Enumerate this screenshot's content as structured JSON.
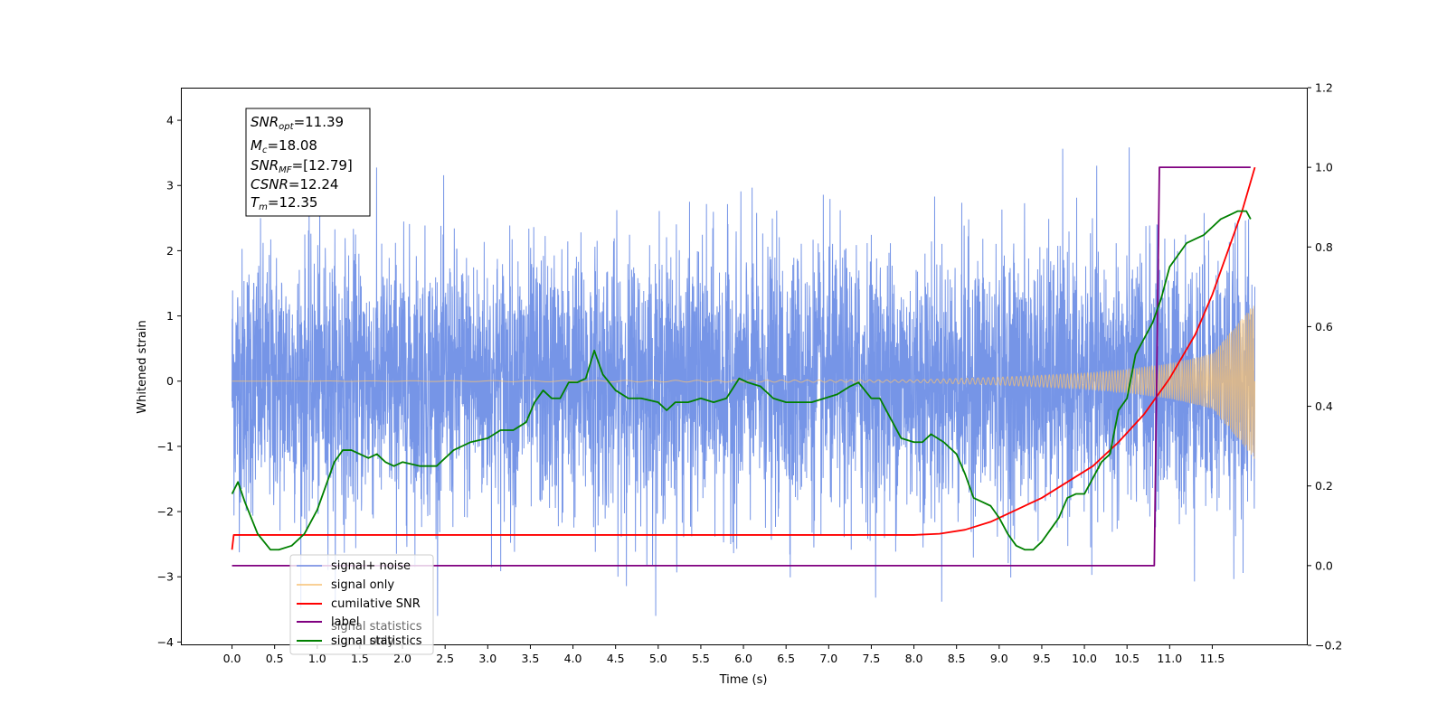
{
  "chart_data": {
    "type": "line",
    "xlabel": "Time (s)",
    "ylabel": "Whitened strain",
    "xlim": [
      -0.6,
      12.62
    ],
    "ylim": [
      -4.05,
      4.5
    ],
    "y2lim": [
      -0.2,
      1.2
    ],
    "x_ticks": [
      "0.0",
      "0.5",
      "1.0",
      "1.5",
      "2.0",
      "2.5",
      "3.0",
      "3.5",
      "4.0",
      "4.5",
      "5.0",
      "5.5",
      "6.0",
      "6.5",
      "7.0",
      "7.5",
      "8.0",
      "8.5",
      "9.0",
      "9.5",
      "10.0",
      "10.5",
      "11.0",
      "11.5"
    ],
    "y_ticks": [
      "4",
      "3",
      "2",
      "1",
      "0",
      "−1",
      "−2",
      "−3",
      "−4"
    ],
    "y2_ticks": [
      "1.2",
      "1.0",
      "0.8",
      "0.6",
      "0.4",
      "0.2",
      "0.0",
      "−0.2"
    ],
    "grid": false,
    "legend_position": "lower-left",
    "annotation": {
      "lines": [
        {
          "base": "SNR",
          "sub": "opt",
          "value": "=11.39"
        },
        {
          "base": "M",
          "sub": "c",
          "value": "=18.08"
        },
        {
          "base": "SNR",
          "sub": "MF",
          "value": "=[12.79]"
        },
        {
          "base": "CSNR",
          "sub": "",
          "value": "=12.24"
        },
        {
          "base": "T",
          "sub": "m",
          "value": "=12.35"
        }
      ]
    },
    "legend": [
      {
        "label": "signal+ noise",
        "color": "#6f8fe6"
      },
      {
        "label": "signal only",
        "color": "#f7c173"
      },
      {
        "label": "cumilative SNR",
        "color": "#ff0000"
      },
      {
        "label": "label",
        "color": "#800080"
      },
      {
        "label": "signal statistics",
        "color": "#008000"
      }
    ],
    "ghost_legend_text": [
      "signal only",
      "signal statistics"
    ],
    "series": [
      {
        "name": "signal+ noise",
        "axis": "left",
        "color": "#6f8fe6",
        "description_range": [
          -3.6,
          3.85
        ],
        "x_start": 0.0,
        "x_end": 12.0
      },
      {
        "name": "signal only",
        "axis": "left",
        "color": "#f7c173",
        "envelope": {
          "x": [
            0.0,
            8.0,
            9.0,
            10.0,
            10.5,
            11.0,
            11.5,
            12.0
          ],
          "amp": [
            0.0,
            0.02,
            0.06,
            0.12,
            0.18,
            0.27,
            0.42,
            1.2
          ]
        }
      },
      {
        "name": "cumilative SNR",
        "axis": "right",
        "color": "#ff0000",
        "x": [
          0.0,
          0.02,
          1.0,
          3.0,
          5.0,
          7.0,
          8.0,
          8.3,
          8.6,
          8.9,
          9.2,
          9.5,
          9.8,
          10.1,
          10.4,
          10.7,
          11.0,
          11.3,
          11.5,
          11.7,
          11.85,
          12.0
        ],
        "y": [
          0.04,
          0.077,
          0.077,
          0.077,
          0.077,
          0.077,
          0.077,
          0.08,
          0.09,
          0.11,
          0.14,
          0.17,
          0.21,
          0.25,
          0.31,
          0.38,
          0.47,
          0.58,
          0.68,
          0.8,
          0.89,
          1.0
        ]
      },
      {
        "name": "label",
        "axis": "right",
        "color": "#800080",
        "x": [
          0.0,
          10.82,
          10.88,
          11.95
        ],
        "y": [
          0.0,
          0.0,
          1.0,
          1.0
        ]
      },
      {
        "name": "signal statistics",
        "axis": "right",
        "color": "#008000",
        "x": [
          0.0,
          0.07,
          0.15,
          0.3,
          0.45,
          0.55,
          0.7,
          0.85,
          1.0,
          1.1,
          1.2,
          1.3,
          1.4,
          1.5,
          1.6,
          1.7,
          1.8,
          1.9,
          2.0,
          2.2,
          2.4,
          2.6,
          2.8,
          3.0,
          3.15,
          3.3,
          3.45,
          3.55,
          3.65,
          3.75,
          3.85,
          3.95,
          4.05,
          4.15,
          4.25,
          4.35,
          4.5,
          4.65,
          4.8,
          5.0,
          5.1,
          5.2,
          5.35,
          5.5,
          5.65,
          5.8,
          5.95,
          6.05,
          6.2,
          6.35,
          6.5,
          6.65,
          6.8,
          6.95,
          7.1,
          7.25,
          7.35,
          7.5,
          7.6,
          7.7,
          7.85,
          8.0,
          8.1,
          8.2,
          8.35,
          8.5,
          8.6,
          8.7,
          8.8,
          8.9,
          9.0,
          9.1,
          9.2,
          9.3,
          9.4,
          9.5,
          9.6,
          9.7,
          9.8,
          9.9,
          10.0,
          10.1,
          10.2,
          10.3,
          10.4,
          10.5,
          10.6,
          10.7,
          10.8,
          10.9,
          11.0,
          11.1,
          11.2,
          11.3,
          11.4,
          11.5,
          11.6,
          11.7,
          11.8,
          11.9,
          11.95
        ],
        "y": [
          0.18,
          0.21,
          0.16,
          0.08,
          0.04,
          0.04,
          0.05,
          0.08,
          0.14,
          0.2,
          0.26,
          0.29,
          0.29,
          0.28,
          0.27,
          0.28,
          0.26,
          0.25,
          0.26,
          0.25,
          0.25,
          0.29,
          0.31,
          0.32,
          0.34,
          0.34,
          0.36,
          0.41,
          0.44,
          0.42,
          0.42,
          0.46,
          0.46,
          0.47,
          0.54,
          0.48,
          0.44,
          0.42,
          0.42,
          0.41,
          0.39,
          0.41,
          0.41,
          0.42,
          0.41,
          0.42,
          0.47,
          0.46,
          0.45,
          0.42,
          0.41,
          0.41,
          0.41,
          0.42,
          0.43,
          0.45,
          0.46,
          0.42,
          0.42,
          0.38,
          0.32,
          0.31,
          0.31,
          0.33,
          0.31,
          0.28,
          0.23,
          0.17,
          0.16,
          0.15,
          0.12,
          0.08,
          0.05,
          0.04,
          0.04,
          0.06,
          0.09,
          0.12,
          0.17,
          0.18,
          0.18,
          0.22,
          0.26,
          0.28,
          0.39,
          0.42,
          0.53,
          0.57,
          0.61,
          0.67,
          0.75,
          0.78,
          0.81,
          0.82,
          0.83,
          0.85,
          0.87,
          0.88,
          0.89,
          0.89,
          0.87
        ]
      }
    ]
  }
}
